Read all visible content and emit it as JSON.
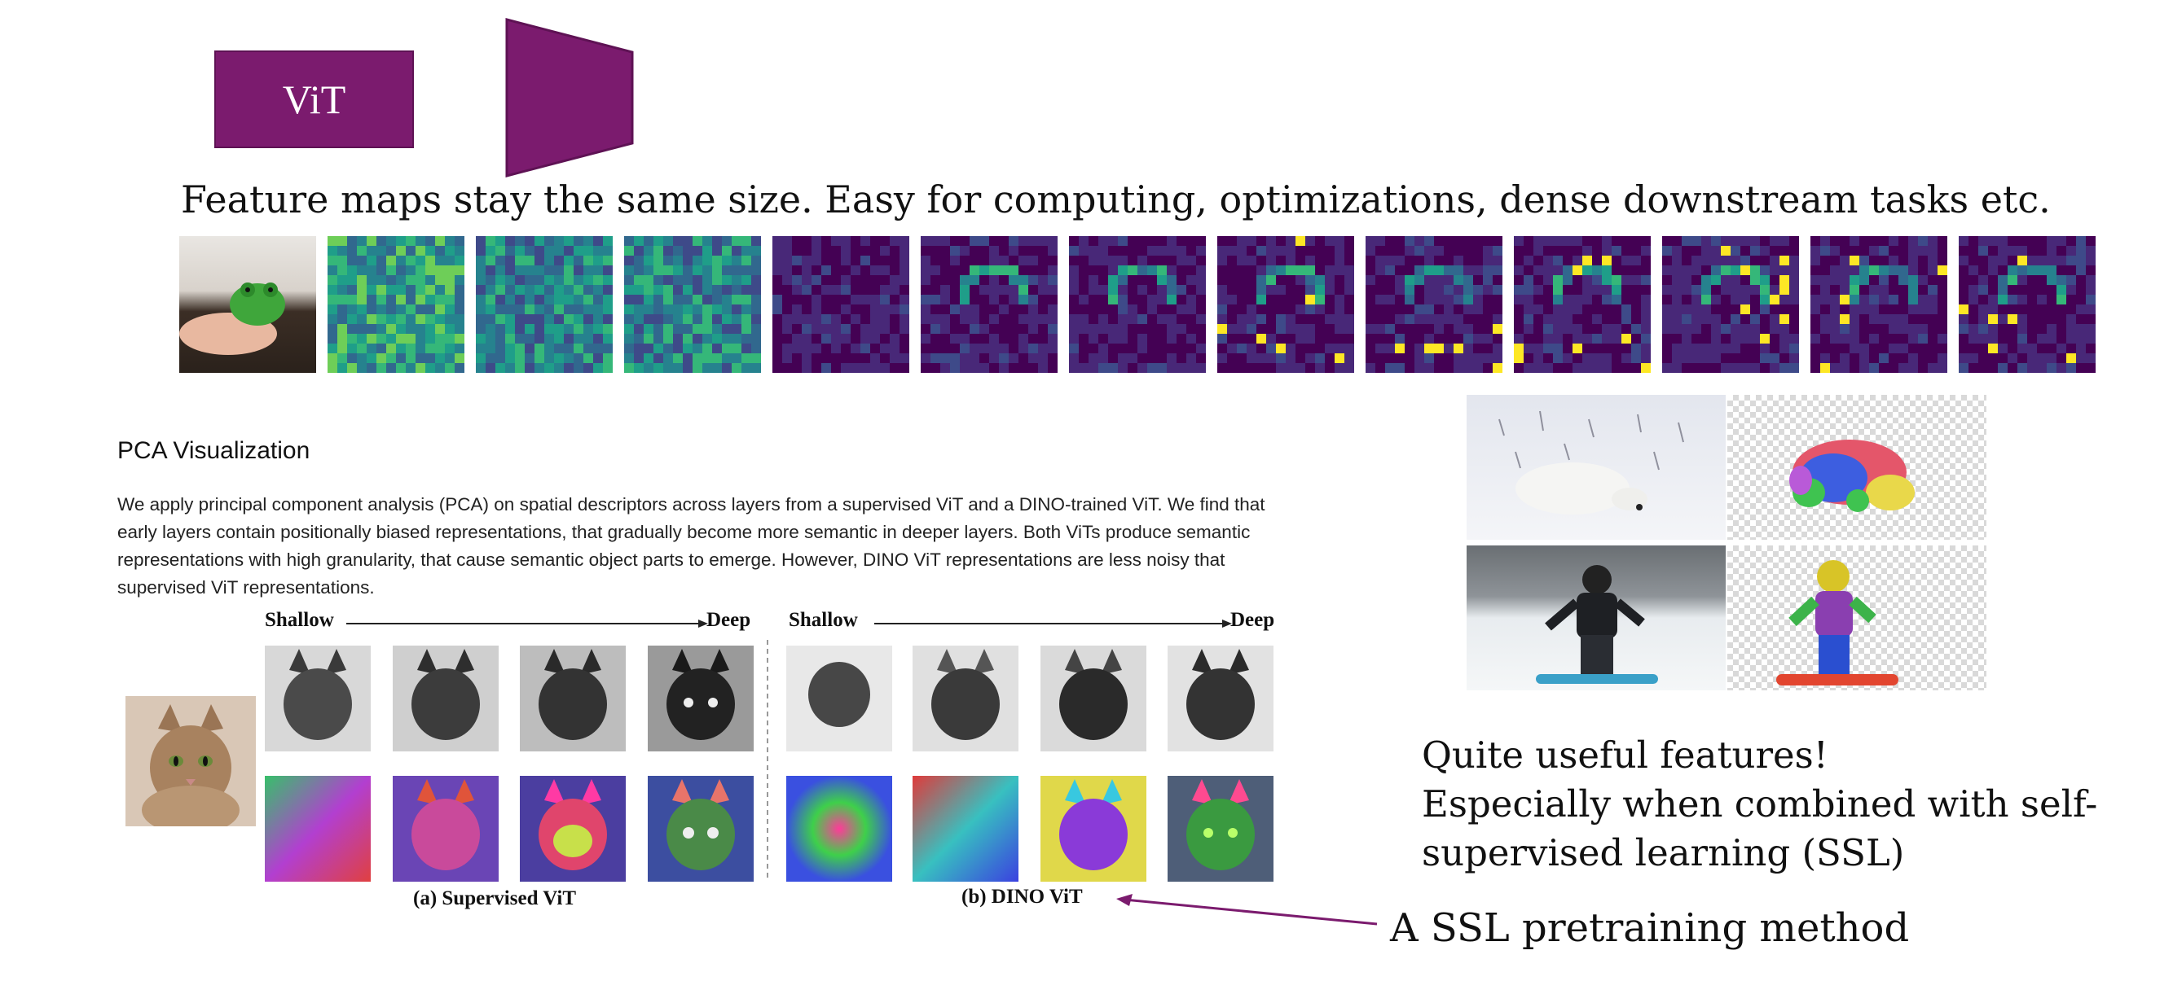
{
  "vit_box": {
    "label": "ViT",
    "color": "#7b1b6e"
  },
  "headline": "Feature maps stay the same size. Easy for computing, optimizations, dense downstream tasks etc.",
  "pca": {
    "title": "PCA Visualization",
    "paragraph": "We apply principal component analysis (PCA) on spatial descriptors across layers from a supervised ViT and a DINO-trained ViT. We find that early layers contain positionally biased representations, that gradually become more semantic in deeper layers. Both ViTs produce semantic representations with high granularity, that cause semantic object parts to emerge. However, DINO ViT representations are less noisy that supervised ViT representations.",
    "left_panel": {
      "shallow": "Shallow",
      "deep": "Deep",
      "caption": "(a) Supervised ViT"
    },
    "right_panel": {
      "shallow": "Shallow",
      "deep": "Deep",
      "caption": "(b) DINO ViT"
    }
  },
  "quote_lines": [
    "Quite useful features!",
    "Especially when combined with self-",
    "supervised learning (SSL)"
  ],
  "ssl_label": "A SSL pretraining method",
  "colors": {
    "accent": "#7b1b6e",
    "viridis_dark": "#440154",
    "viridis_teal": "#21918c",
    "viridis_yellow": "#fde725"
  },
  "icons": [
    "vit-block",
    "decoder-trapezoid",
    "arrow-left"
  ]
}
